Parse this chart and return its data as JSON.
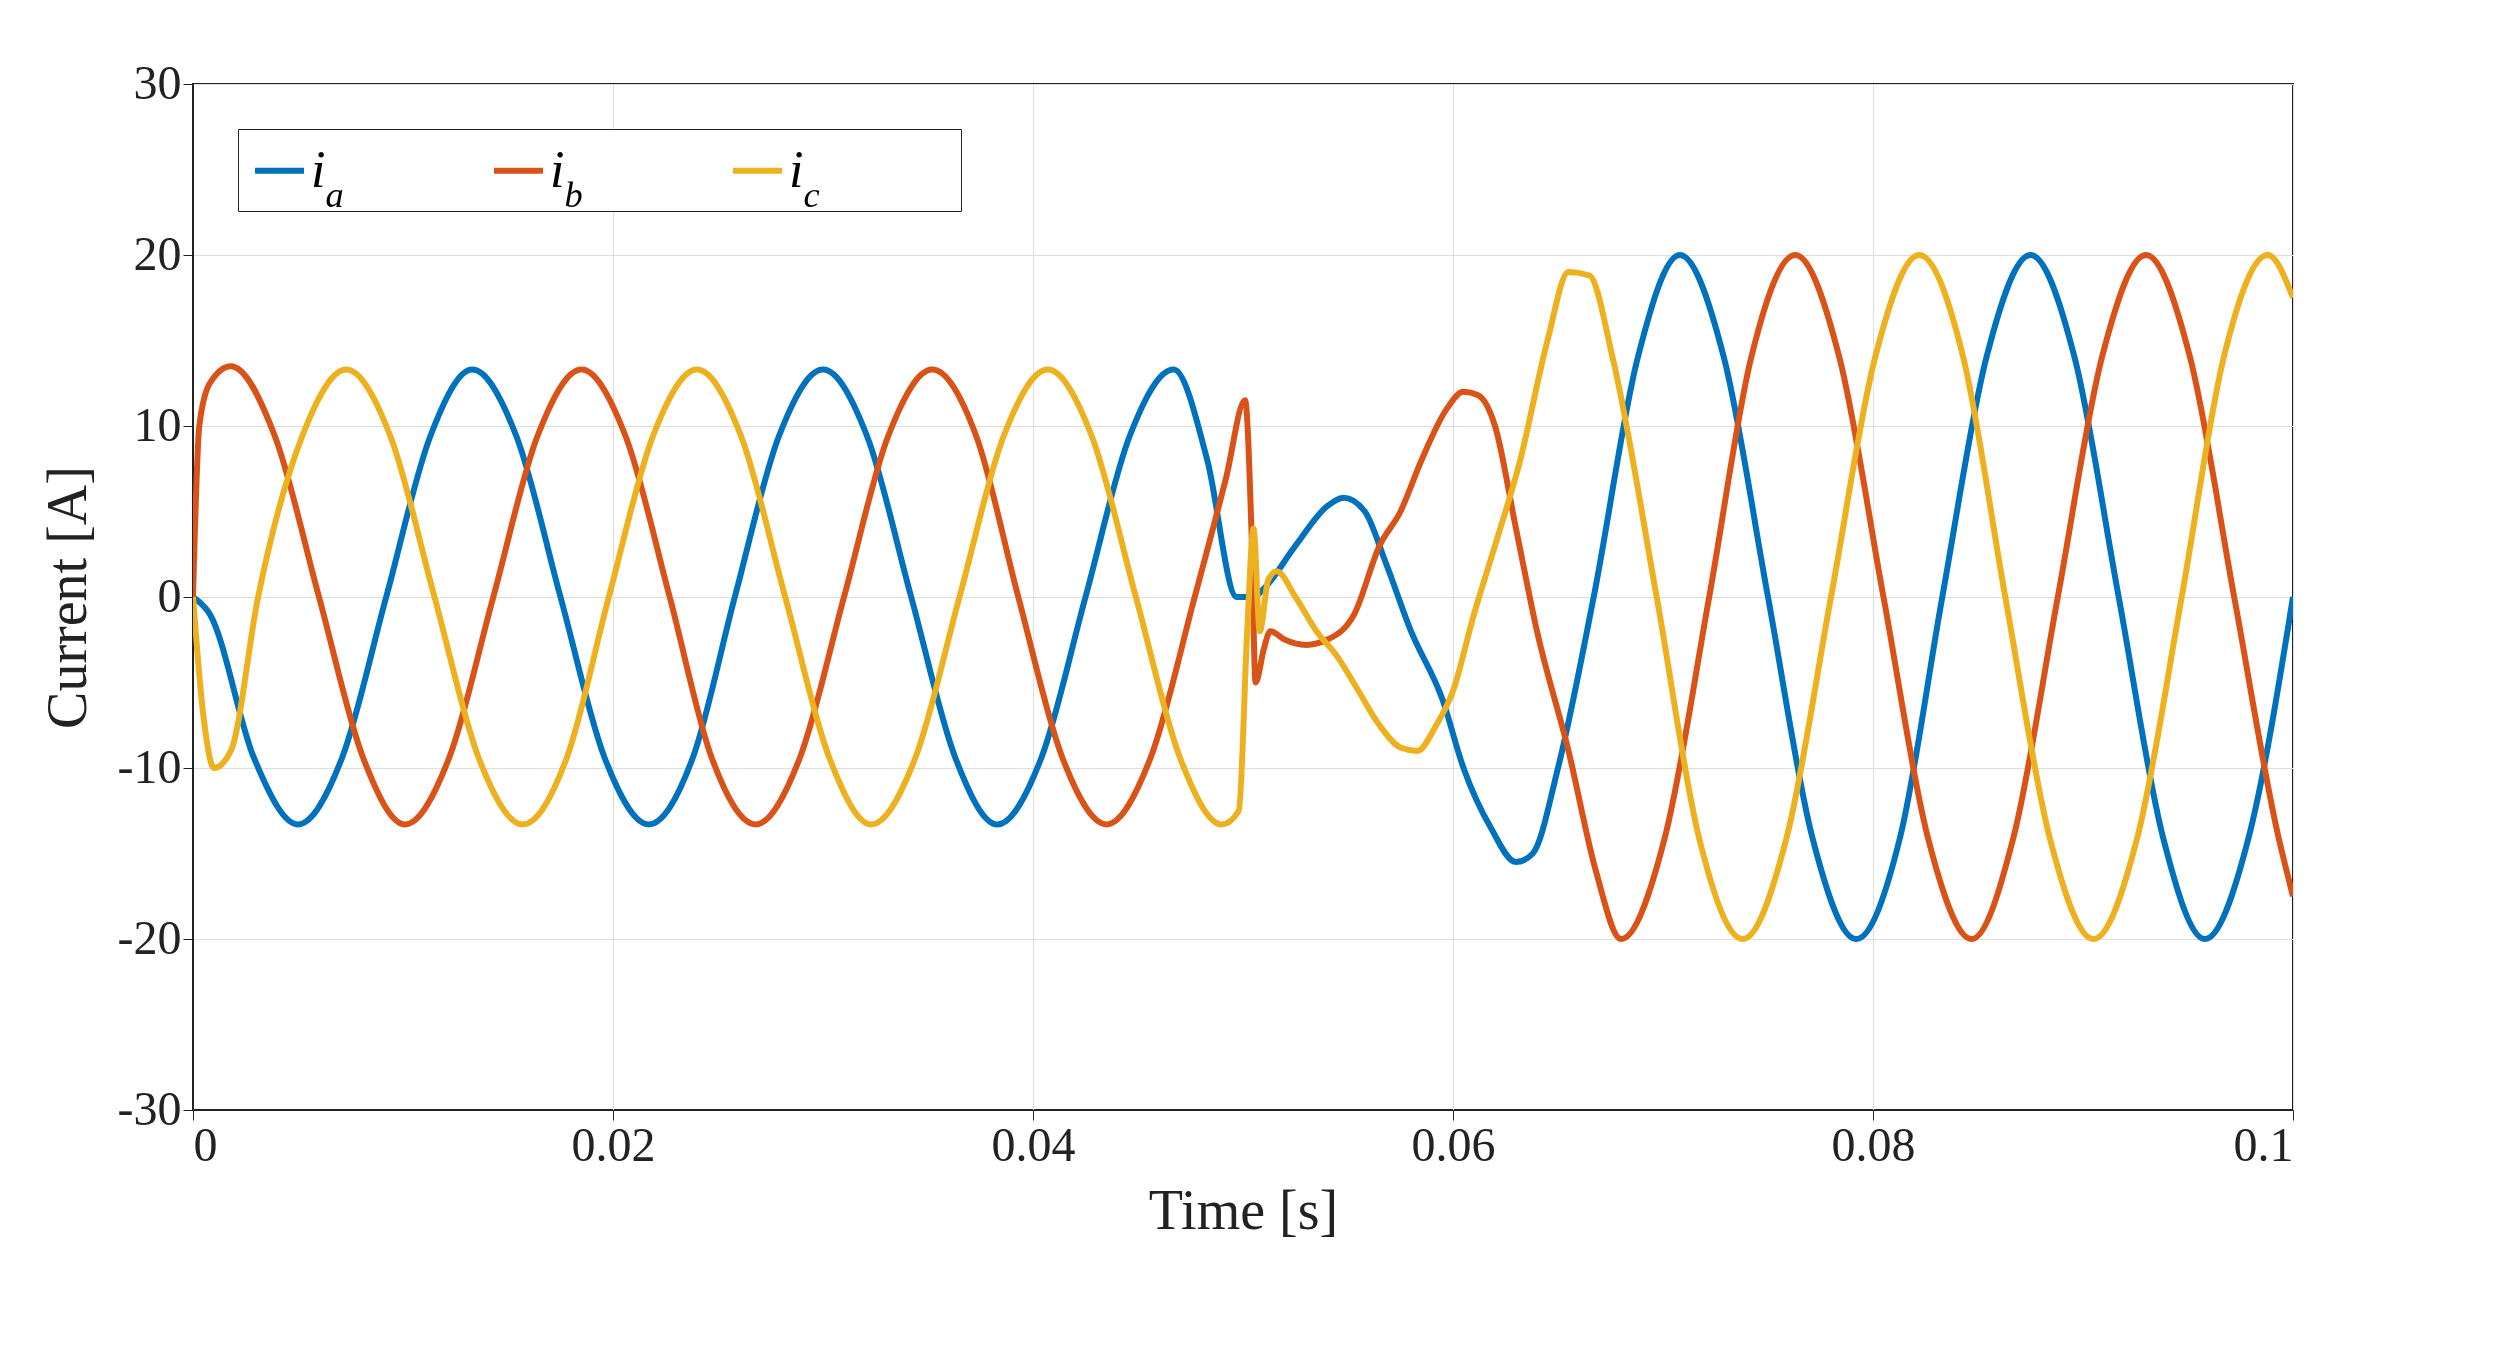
{
  "chart_data": {
    "type": "line",
    "xlabel": "Time [s]",
    "ylabel": "Current [A]",
    "xlim": [
      0,
      0.1
    ],
    "ylim": [
      -30,
      30
    ],
    "xticks": [
      0,
      0.02,
      0.04,
      0.06,
      0.08,
      0.1
    ],
    "yticks": [
      -30,
      -20,
      -10,
      0,
      10,
      20,
      30
    ],
    "grid": true,
    "legend": "top left",
    "line_style": "solid",
    "marker": "none",
    "series": [
      {
        "name": "i$_{a}$",
        "color": "#0072bd",
        "x": [
          0,
          0.0008,
          0.0029,
          0.005,
          0.0071,
          0.0092,
          0.0113,
          0.0133,
          0.0154,
          0.0175,
          0.0196,
          0.0217,
          0.0238,
          0.0258,
          0.0279,
          0.03,
          0.0321,
          0.0342,
          0.0363,
          0.0383,
          0.0404,
          0.0425,
          0.0446,
          0.0467,
          0.0483,
          0.0497,
          0.0505,
          0.051,
          0.0525,
          0.054,
          0.0548,
          0.0558,
          0.0568,
          0.058,
          0.0595,
          0.0605,
          0.0618,
          0.063,
          0.0638,
          0.065,
          0.0667,
          0.0688,
          0.0708,
          0.0729,
          0.075,
          0.0771,
          0.0792,
          0.0813,
          0.0833,
          0.0854,
          0.0875,
          0.0896,
          0.0917,
          0.0938,
          0.0958,
          0.0979,
          0.1
        ],
        "values": [
          0,
          -1,
          -9.4,
          -13.3,
          -9.4,
          0,
          9.4,
          13.3,
          9.4,
          0,
          -9.4,
          -13.3,
          -9.4,
          0,
          9.4,
          13.3,
          9.4,
          0,
          -9.4,
          -13.3,
          -9.4,
          0,
          9.4,
          13.3,
          8,
          0,
          0,
          0.5,
          3,
          5.3,
          5.8,
          5,
          2,
          -2,
          -6,
          -10,
          -13.5,
          -15.5,
          -15,
          -10,
          0,
          14,
          20,
          14,
          0,
          -14,
          -20,
          -14,
          0,
          14,
          20,
          14,
          0,
          -14,
          -20,
          -14,
          0
        ]
      },
      {
        "name": "i$_{b}$",
        "color": "#d95319",
        "x": [
          0,
          0.0003,
          0.0008,
          0.0018,
          0.0039,
          0.006,
          0.0081,
          0.0101,
          0.0122,
          0.0143,
          0.0164,
          0.0185,
          0.0206,
          0.0227,
          0.0247,
          0.0268,
          0.0289,
          0.031,
          0.0331,
          0.0352,
          0.0373,
          0.0393,
          0.0414,
          0.0435,
          0.0456,
          0.0477,
          0.0492,
          0.0501,
          0.0504,
          0.0506,
          0.051,
          0.0513,
          0.052,
          0.053,
          0.054,
          0.0553,
          0.0565,
          0.0575,
          0.0585,
          0.0597,
          0.0605,
          0.0612,
          0.062,
          0.063,
          0.064,
          0.0655,
          0.0668,
          0.068,
          0.0701,
          0.0722,
          0.0742,
          0.0763,
          0.0784,
          0.0805,
          0.0826,
          0.0847,
          0.0867,
          0.0888,
          0.0909,
          0.093,
          0.0951,
          0.0972,
          0.0993,
          0.1
        ],
        "values": [
          0,
          10,
          12.5,
          13.5,
          9.4,
          0,
          -9.4,
          -13.3,
          -9.4,
          0,
          9.4,
          13.3,
          9.4,
          0,
          -9.4,
          -13.3,
          -9.4,
          0,
          9.4,
          13.3,
          9.4,
          0,
          -9.4,
          -13.3,
          -9.4,
          0,
          7,
          11.5,
          4,
          -5,
          -3,
          -2,
          -2.5,
          -2.8,
          -2.5,
          -1,
          3,
          5,
          8,
          11,
          12,
          11.8,
          10,
          4,
          -2,
          -9,
          -16,
          -20,
          -14,
          0,
          14,
          20,
          14,
          0,
          -14,
          -20,
          -14,
          0,
          14,
          20,
          14,
          0,
          -14,
          -17.5
        ]
      },
      {
        "name": "i$_{c}$",
        "color": "#edb120",
        "x": [
          0,
          0.0005,
          0.001,
          0.0018,
          0.0031,
          0.0052,
          0.0073,
          0.0094,
          0.0115,
          0.0136,
          0.0157,
          0.0178,
          0.0198,
          0.0219,
          0.024,
          0.0261,
          0.0282,
          0.0303,
          0.0323,
          0.0344,
          0.0365,
          0.0386,
          0.0407,
          0.0428,
          0.0449,
          0.047,
          0.049,
          0.0498,
          0.0502,
          0.0505,
          0.0508,
          0.0512,
          0.0516,
          0.0525,
          0.0535,
          0.0545,
          0.0555,
          0.0565,
          0.0575,
          0.0583,
          0.0592,
          0.06,
          0.061,
          0.062,
          0.0632,
          0.0645,
          0.0655,
          0.0665,
          0.0676,
          0.0697,
          0.0717,
          0.0738,
          0.0759,
          0.078,
          0.0801,
          0.0822,
          0.0843,
          0.0863,
          0.0884,
          0.0905,
          0.0926,
          0.0947,
          0.0967,
          0.0988,
          0.1
        ],
        "values": [
          0,
          -7,
          -10,
          -9,
          0,
          9.4,
          13.3,
          9.4,
          0,
          -9.4,
          -13.3,
          -9.4,
          0,
          9.4,
          13.3,
          9.4,
          0,
          -9.4,
          -13.3,
          -9.4,
          0,
          9.4,
          13.3,
          9.4,
          0,
          -9.4,
          -13.3,
          -12.5,
          -2,
          4,
          -2,
          1,
          1.5,
          0,
          -2,
          -3.5,
          -5.5,
          -7.5,
          -8.8,
          -9,
          -7.5,
          -5.5,
          -1,
          3,
          8,
          15,
          19,
          18.8,
          14,
          0,
          -14,
          -20,
          -14,
          0,
          14,
          20,
          14,
          0,
          -14,
          -20,
          -14,
          0,
          14,
          20,
          17.5
        ]
      }
    ]
  }
}
